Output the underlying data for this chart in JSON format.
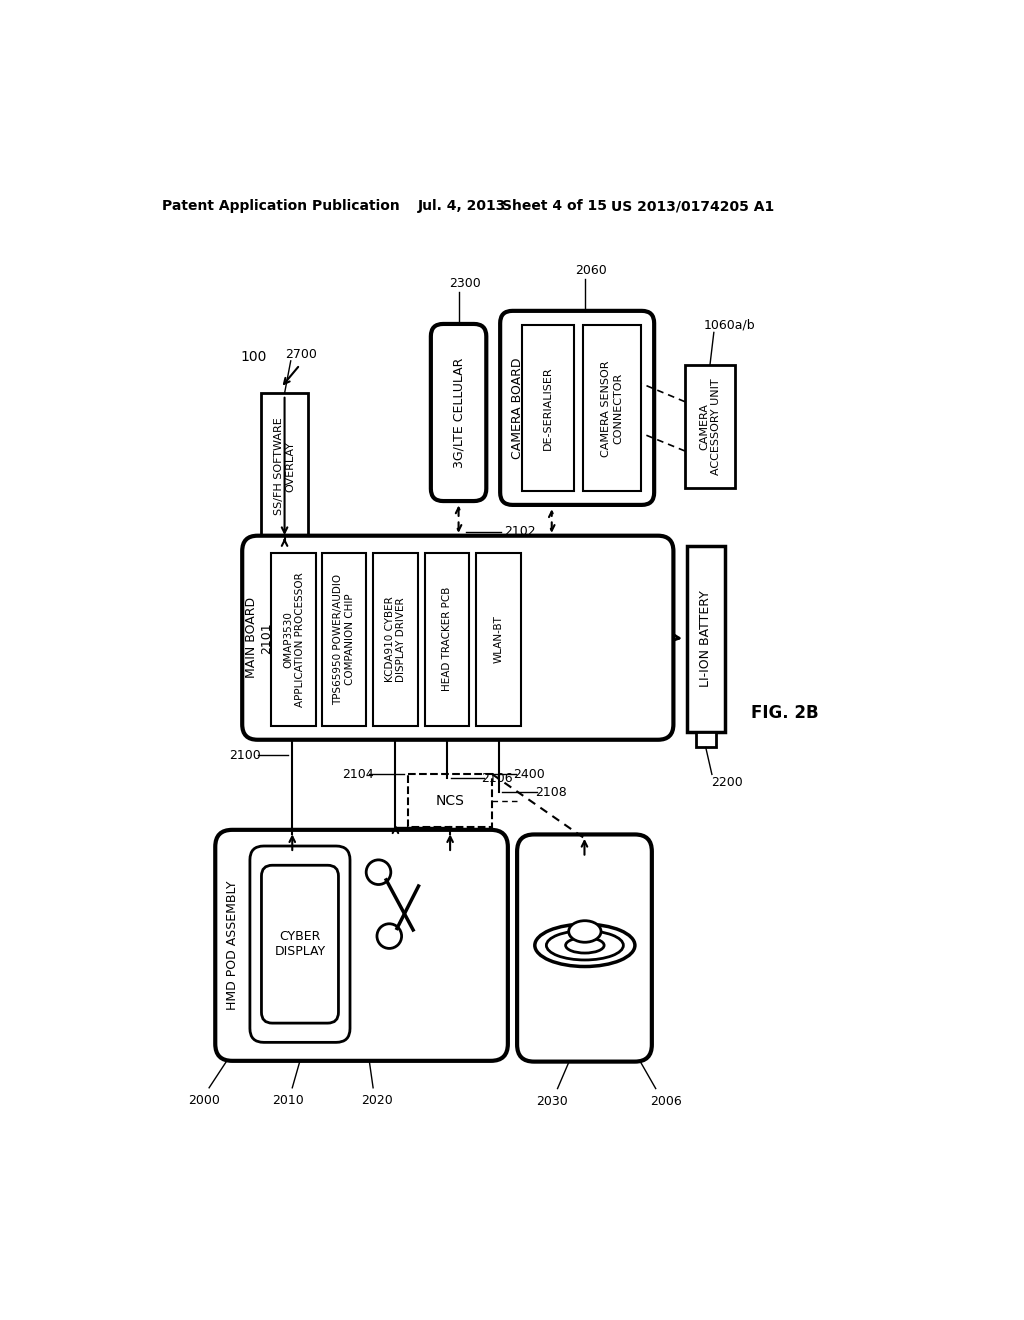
{
  "bg_color": "#ffffff",
  "header_left": "Patent Application Publication",
  "header_date": "Jul. 4, 2013",
  "header_sheet": "Sheet 4 of 15",
  "header_patent": "US 2013/0174205 A1"
}
